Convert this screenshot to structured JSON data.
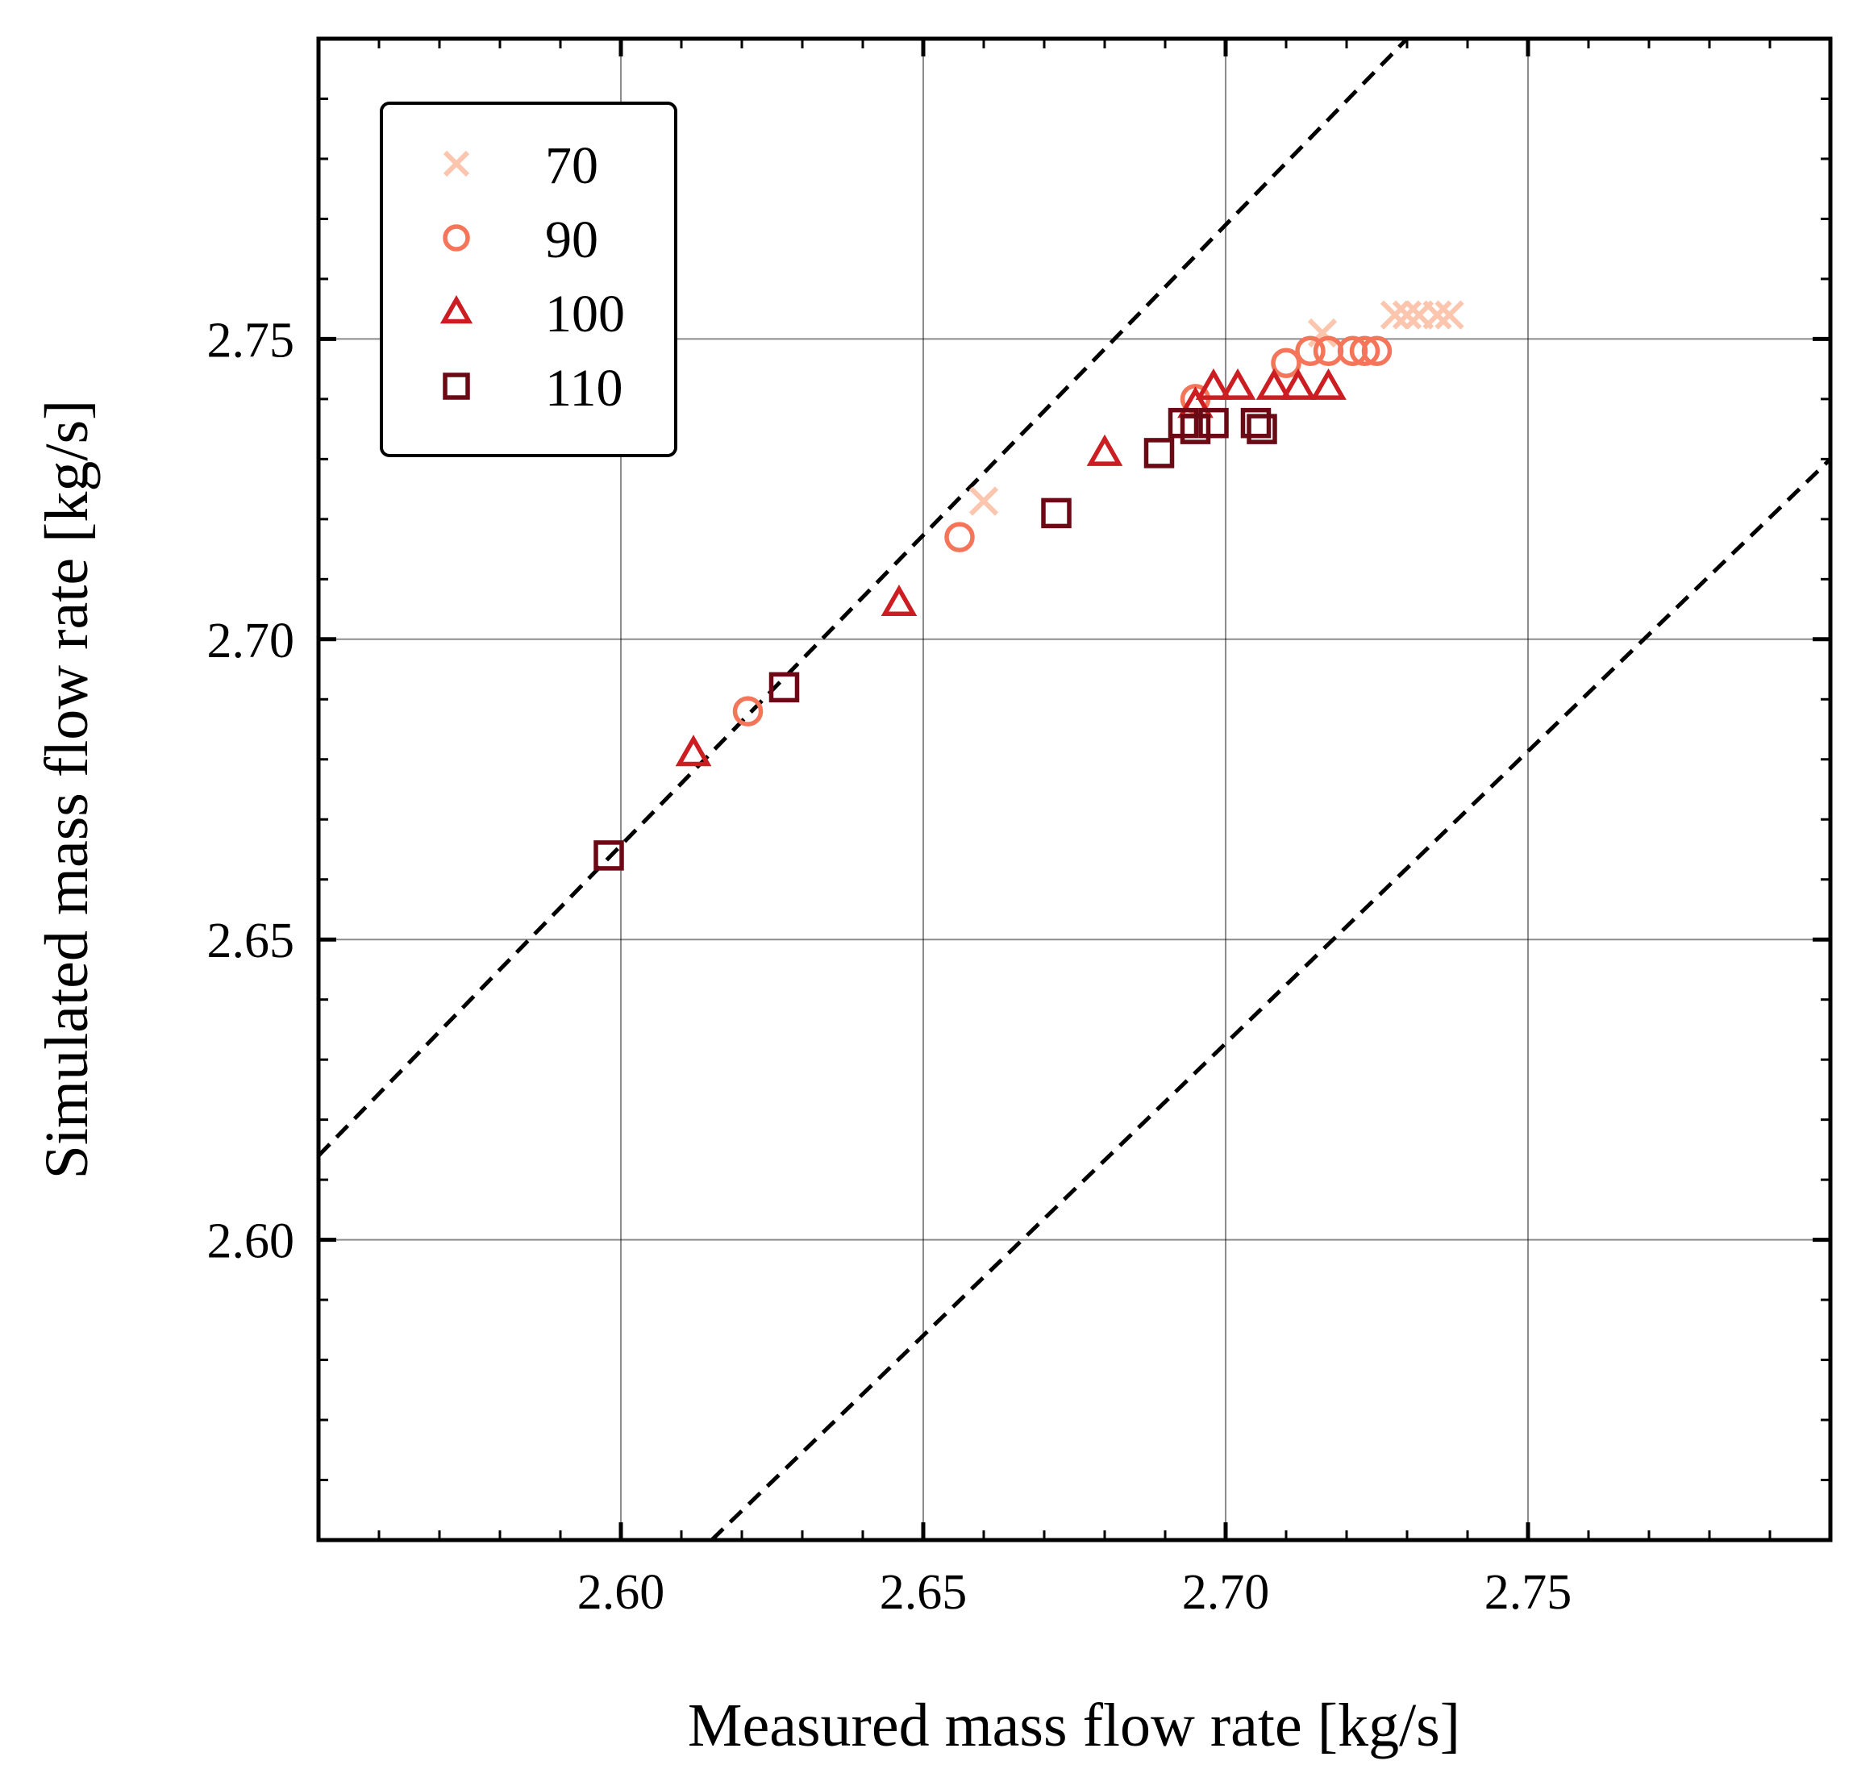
{
  "chart_data": {
    "type": "scatter",
    "xlabel": "Measured mass flow rate [kg/s]",
    "ylabel": "Simulated mass flow rate [kg/s]",
    "xlim": [
      2.55,
      2.8
    ],
    "ylim": [
      2.55,
      2.8
    ],
    "x_ticks": [
      "2.60",
      "2.65",
      "2.70",
      "2.75"
    ],
    "y_ticks": [
      "2.60",
      "2.65",
      "2.70",
      "2.75"
    ],
    "grid": true,
    "legend_position": "top-left",
    "reference_lines": [
      {
        "style": "dashed",
        "color": "#000000",
        "points": [
          [
            2.55,
            2.614
          ],
          [
            2.73,
            2.8
          ]
        ]
      },
      {
        "style": "dashed",
        "color": "#000000",
        "points": [
          [
            2.615,
            2.55
          ],
          [
            2.8,
            2.73
          ]
        ]
      }
    ],
    "series": [
      {
        "name": "70",
        "marker": "x",
        "color": "#fcc5ae",
        "points": [
          [
            2.66,
            2.723
          ],
          [
            2.716,
            2.751
          ],
          [
            2.728,
            2.754
          ],
          [
            2.73,
            2.754
          ],
          [
            2.732,
            2.754
          ],
          [
            2.735,
            2.754
          ],
          [
            2.737,
            2.754
          ]
        ]
      },
      {
        "name": "90",
        "marker": "circle",
        "color": "#f4755a",
        "points": [
          [
            2.621,
            2.688
          ],
          [
            2.656,
            2.717
          ],
          [
            2.695,
            2.74
          ],
          [
            2.71,
            2.746
          ],
          [
            2.714,
            2.748
          ],
          [
            2.717,
            2.748
          ],
          [
            2.721,
            2.748
          ],
          [
            2.723,
            2.748
          ],
          [
            2.725,
            2.748
          ]
        ]
      },
      {
        "name": "100",
        "marker": "triangle",
        "color": "#cb1d22",
        "points": [
          [
            2.612,
            2.681
          ],
          [
            2.646,
            2.706
          ],
          [
            2.68,
            2.731
          ],
          [
            2.695,
            2.739
          ],
          [
            2.698,
            2.742
          ],
          [
            2.702,
            2.742
          ],
          [
            2.708,
            2.742
          ],
          [
            2.712,
            2.742
          ],
          [
            2.717,
            2.742
          ]
        ]
      },
      {
        "name": "110",
        "marker": "square",
        "color": "#6b0a15",
        "points": [
          [
            2.598,
            2.664
          ],
          [
            2.627,
            2.692
          ],
          [
            2.672,
            2.721
          ],
          [
            2.689,
            2.731
          ],
          [
            2.693,
            2.736
          ],
          [
            2.695,
            2.735
          ],
          [
            2.698,
            2.736
          ],
          [
            2.705,
            2.736
          ],
          [
            2.706,
            2.735
          ]
        ]
      }
    ]
  }
}
